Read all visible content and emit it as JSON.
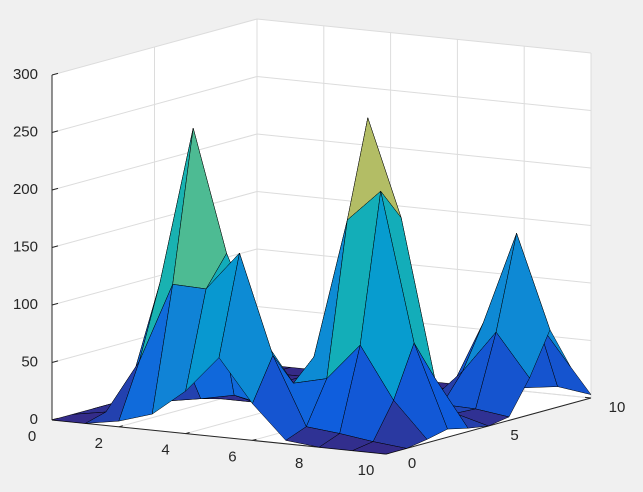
{
  "chart_data": {
    "type": "surface",
    "colormap": "parula",
    "grid": true,
    "x": [
      0,
      1,
      2,
      3,
      4,
      5,
      6,
      7,
      8,
      9,
      10
    ],
    "y": [
      0,
      1,
      2,
      3,
      4,
      5,
      6,
      7,
      8,
      9,
      10
    ],
    "z": [
      [
        0,
        0,
        5,
        14,
        37,
        69,
        32,
        3,
        0,
        0,
        0
      ],
      [
        0,
        5,
        52,
        122,
        121,
        155,
        69,
        10,
        7,
        3,
        0
      ],
      [
        0,
        11,
        115,
        253,
        147,
        80,
        40,
        47,
        79,
        34,
        3
      ],
      [
        0,
        5,
        52,
        115,
        57,
        17,
        58,
        180,
        208,
        79,
        7
      ],
      [
        0,
        0,
        5,
        11,
        5,
        10,
        109,
        264,
        180,
        44,
        3
      ],
      [
        0,
        0,
        0,
        0,
        0,
        5,
        48,
        109,
        55,
        8,
        0
      ],
      [
        0,
        0,
        0,
        0,
        0,
        0,
        5,
        10,
        8,
        7,
        3
      ],
      [
        0,
        0,
        0,
        0,
        0,
        0,
        0,
        3,
        32,
        69,
        32
      ],
      [
        0,
        0,
        0,
        0,
        0,
        0,
        0,
        7,
        69,
        150,
        69
      ],
      [
        0,
        0,
        0,
        0,
        0,
        0,
        0,
        3,
        32,
        69,
        32
      ],
      [
        0,
        0,
        0,
        0,
        0,
        0,
        0,
        0,
        3,
        7,
        3
      ]
    ],
    "xlim": [
      0,
      10
    ],
    "xticks": [
      0,
      2,
      4,
      6,
      8,
      10
    ],
    "ylim": [
      0,
      10
    ],
    "yticks": [
      0,
      5,
      10
    ],
    "zlim": [
      0,
      300
    ],
    "zticks": [
      0,
      50,
      100,
      150,
      200,
      250,
      300
    ]
  }
}
